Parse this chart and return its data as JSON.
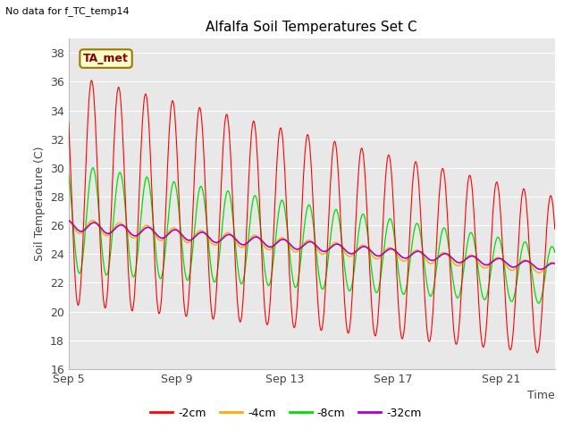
{
  "title": "Alfalfa Soil Temperatures Set C",
  "xlabel": "Time",
  "ylabel": "Soil Temperature (C)",
  "note": "No data for f_TC_temp14",
  "annotation": "TA_met",
  "ylim": [
    16,
    39
  ],
  "yticks": [
    16,
    18,
    20,
    22,
    24,
    26,
    28,
    30,
    32,
    34,
    36,
    38
  ],
  "xticks": [
    "Sep 5",
    "Sep 9",
    "Sep 13",
    "Sep 17",
    "Sep 21"
  ],
  "xtick_pos": [
    0,
    4,
    8,
    12,
    16
  ],
  "xlim": [
    0,
    18
  ],
  "fig_bg": "#ffffff",
  "plot_bg": "#e8e8e8",
  "grid_color": "#ffffff",
  "line_colors": {
    "2cm": "#ff0000",
    "4cm": "#ffaa00",
    "8cm": "#00dd00",
    "32cm": "#aa00cc"
  },
  "legend_labels": [
    "-2cm",
    "-4cm",
    "-8cm",
    "-32cm"
  ]
}
